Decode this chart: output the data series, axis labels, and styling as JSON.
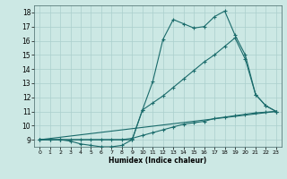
{
  "xlabel": "Humidex (Indice chaleur)",
  "xlim": [
    -0.5,
    23.5
  ],
  "ylim": [
    8.5,
    18.5
  ],
  "yticks": [
    9,
    10,
    11,
    12,
    13,
    14,
    15,
    16,
    17,
    18
  ],
  "xticks": [
    0,
    1,
    2,
    3,
    4,
    5,
    6,
    7,
    8,
    9,
    10,
    11,
    12,
    13,
    14,
    15,
    16,
    17,
    18,
    19,
    20,
    21,
    22,
    23
  ],
  "bg_color": "#cce8e4",
  "line_color": "#1a6b6b",
  "grid_color": "#aacfcc",
  "line1_x": [
    0,
    1,
    2,
    3,
    4,
    5,
    6,
    7,
    8,
    9,
    10,
    11,
    12,
    13,
    14,
    15,
    16,
    17,
    18,
    19,
    20,
    21,
    22,
    23
  ],
  "line1_y": [
    9.0,
    9.0,
    9.0,
    8.9,
    8.7,
    8.6,
    8.5,
    8.5,
    8.6,
    9.0,
    11.1,
    13.1,
    16.1,
    17.5,
    17.2,
    16.9,
    17.0,
    17.7,
    18.1,
    16.4,
    15.0,
    12.2,
    11.4,
    11.0
  ],
  "line2_x": [
    0,
    2,
    9,
    10,
    11,
    12,
    13,
    14,
    15,
    16,
    17,
    18,
    19,
    20,
    21,
    22,
    23
  ],
  "line2_y": [
    9.0,
    9.0,
    9.0,
    11.1,
    11.6,
    12.1,
    12.7,
    13.3,
    13.9,
    14.5,
    15.0,
    15.6,
    16.2,
    14.7,
    12.2,
    11.4,
    11.0
  ],
  "line3_x": [
    0,
    23
  ],
  "line3_y": [
    9.0,
    11.0
  ],
  "line4_x": [
    0,
    1,
    2,
    3,
    4,
    5,
    6,
    7,
    8,
    9,
    10,
    11,
    12,
    13,
    14,
    15,
    16,
    17,
    18,
    19,
    20,
    21,
    22,
    23
  ],
  "line4_y": [
    9.0,
    9.0,
    9.0,
    9.0,
    9.0,
    9.0,
    9.0,
    9.0,
    9.0,
    9.1,
    9.3,
    9.5,
    9.7,
    9.9,
    10.1,
    10.2,
    10.3,
    10.5,
    10.6,
    10.7,
    10.8,
    10.9,
    10.95,
    11.0
  ]
}
